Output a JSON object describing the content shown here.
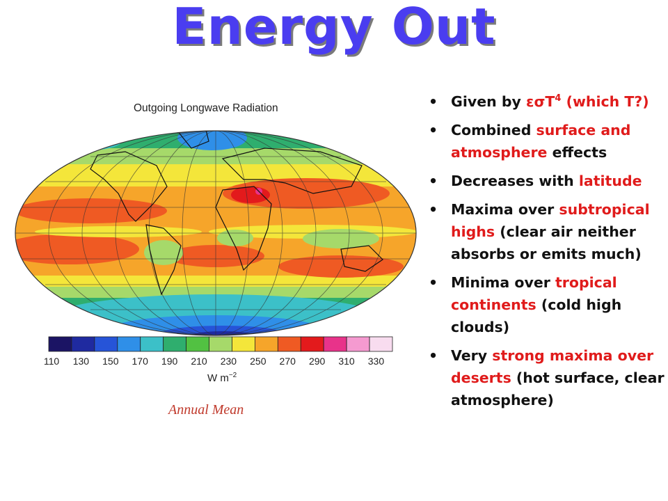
{
  "slide": {
    "title": "Energy Out",
    "caption": "Annual Mean"
  },
  "figure": {
    "title": "Outgoing Longwave Radiation",
    "units": "W m",
    "units_exp": "−2",
    "colorbar": {
      "ticks": [
        "110",
        "130",
        "150",
        "170",
        "190",
        "210",
        "230",
        "250",
        "270",
        "290",
        "310",
        "330"
      ],
      "colors": [
        "#1b1464",
        "#1f2aa0",
        "#2654d8",
        "#2f8fe8",
        "#3cc0c8",
        "#2fae6e",
        "#52c142",
        "#a6d96a",
        "#f4e63a",
        "#f6a52a",
        "#ef5a23",
        "#e31a1c",
        "#e8338a",
        "#f59ad0",
        "#f8dcef"
      ]
    }
  },
  "bullets": [
    {
      "runs": [
        {
          "text": "Given by ",
          "red": false
        },
        {
          "text": "εσT",
          "red": true
        },
        {
          "text": "4",
          "red": true,
          "sup": true
        },
        {
          "text": " (which T?)",
          "red": true
        }
      ]
    },
    {
      "runs": [
        {
          "text": "Combined ",
          "red": false
        },
        {
          "text": "surface and atmosphere",
          "red": true
        },
        {
          "text": " effects",
          "red": false
        }
      ]
    },
    {
      "runs": [
        {
          "text": "Decreases with ",
          "red": false
        },
        {
          "text": "latitude",
          "red": true
        }
      ]
    },
    {
      "runs": [
        {
          "text": "Maxima over ",
          "red": false
        },
        {
          "text": "subtropical highs",
          "red": true
        },
        {
          "text": " (clear air neither absorbs or emits much)",
          "red": false
        }
      ]
    },
    {
      "runs": [
        {
          "text": "Minima over ",
          "red": false
        },
        {
          "text": "tropical continents",
          "red": true
        },
        {
          "text": " (cold high clouds)",
          "red": false
        }
      ]
    },
    {
      "runs": [
        {
          "text": "Very ",
          "red": false
        },
        {
          "text": "strong maxima over deserts",
          "red": true
        },
        {
          "text": " (hot surface, clear atmosphere)",
          "red": false
        }
      ]
    }
  ],
  "bullet_symbol": "•"
}
